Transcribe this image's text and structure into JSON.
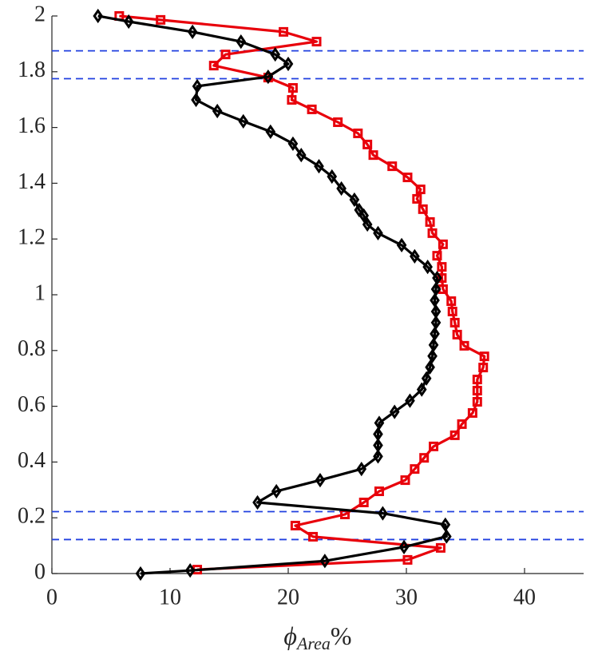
{
  "chart_data": {
    "type": "line",
    "xlabel": {
      "symbol": "ϕ",
      "subscript": "Area",
      "suffix": "%"
    },
    "xlim": [
      0,
      45
    ],
    "ylim": [
      0,
      2
    ],
    "xticks": [
      0,
      10,
      20,
      30,
      40
    ],
    "yticks": [
      0,
      0.2,
      0.4,
      0.6,
      0.8,
      1,
      1.2,
      1.4,
      1.6,
      1.8,
      2
    ],
    "hlines": {
      "color": "#2040e0",
      "values": [
        1.875,
        1.775,
        0.222,
        0.122
      ]
    },
    "series": [
      {
        "color": "#e8000b",
        "marker": "square",
        "x": [
          5.7,
          9.2,
          19.6,
          22.4,
          14.7,
          13.7,
          18.3,
          20.4,
          20.3,
          22.0,
          24.2,
          25.9,
          26.7,
          27.2,
          28.8,
          30.1,
          31.2,
          30.9,
          31.4,
          32.0,
          32.2,
          33.1,
          32.6,
          33.0,
          33.0,
          33.1,
          33.8,
          33.9,
          34.1,
          34.3,
          34.9,
          36.6,
          36.5,
          36.0,
          36.0,
          36.0,
          35.6,
          34.7,
          34.1,
          32.3,
          31.5,
          30.7,
          29.9,
          27.7,
          26.4,
          24.8,
          20.6,
          22.1,
          32.9,
          30.1,
          12.3
        ],
        "y": [
          2.0,
          1.986,
          1.943,
          1.908,
          1.862,
          1.822,
          1.779,
          1.742,
          1.699,
          1.665,
          1.619,
          1.579,
          1.539,
          1.501,
          1.461,
          1.421,
          1.378,
          1.344,
          1.307,
          1.261,
          1.221,
          1.181,
          1.14,
          1.1,
          1.06,
          1.02,
          0.977,
          0.94,
          0.9,
          0.857,
          0.817,
          0.779,
          0.739,
          0.696,
          0.656,
          0.616,
          0.576,
          0.536,
          0.496,
          0.456,
          0.415,
          0.375,
          0.335,
          0.295,
          0.255,
          0.212,
          0.172,
          0.132,
          0.092,
          0.049,
          0.014
        ]
      },
      {
        "color": "#000000",
        "marker": "diamond",
        "x": [
          3.9,
          6.5,
          11.9,
          16.0,
          18.9,
          20.0,
          18.3,
          12.3,
          12.2,
          14.0,
          16.2,
          18.5,
          20.4,
          21.1,
          22.6,
          23.7,
          24.5,
          25.6,
          26.0,
          26.4,
          26.7,
          27.6,
          29.6,
          30.7,
          31.8,
          32.6,
          32.5,
          32.4,
          32.5,
          32.5,
          32.4,
          32.3,
          32.2,
          32.0,
          31.7,
          31.3,
          30.3,
          29.0,
          27.7,
          27.6,
          27.6,
          27.6,
          26.2,
          22.7,
          19.0,
          17.4,
          28.0,
          33.3,
          33.4,
          29.8,
          23.1,
          11.7,
          7.5
        ],
        "y": [
          2.0,
          1.98,
          1.943,
          1.908,
          1.862,
          1.828,
          1.782,
          1.748,
          1.699,
          1.659,
          1.622,
          1.585,
          1.542,
          1.501,
          1.461,
          1.424,
          1.381,
          1.341,
          1.304,
          1.284,
          1.252,
          1.221,
          1.178,
          1.138,
          1.1,
          1.06,
          1.02,
          0.98,
          0.94,
          0.9,
          0.86,
          0.82,
          0.78,
          0.74,
          0.7,
          0.66,
          0.62,
          0.58,
          0.54,
          0.5,
          0.46,
          0.42,
          0.375,
          0.335,
          0.295,
          0.255,
          0.216,
          0.175,
          0.133,
          0.095,
          0.045,
          0.011,
          0.0
        ]
      }
    ]
  }
}
